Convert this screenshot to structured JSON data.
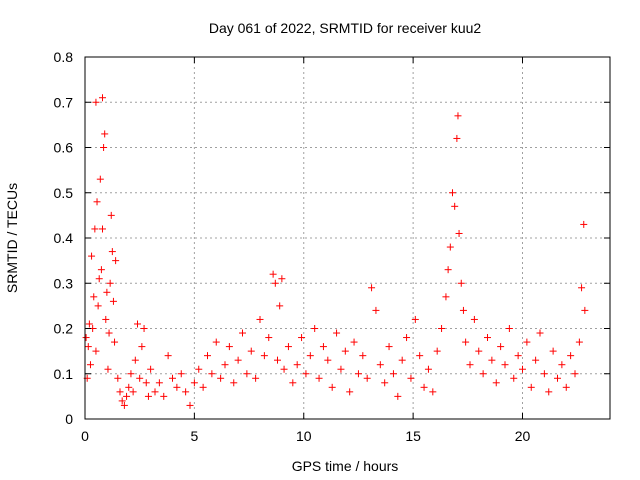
{
  "chart_data": {
    "type": "scatter",
    "title": "Day 061 of 2022, SRMTID for receiver kuu2",
    "xlabel": "GPS time / hours",
    "ylabel": "SRMTID / TECUs",
    "xlim": [
      0,
      24
    ],
    "ylim": [
      0,
      0.8
    ],
    "x_ticks": [
      0,
      5,
      10,
      15,
      20
    ],
    "x_tick_labels": [
      "0",
      "5",
      "10",
      "15",
      "20"
    ],
    "y_ticks": [
      0,
      0.1,
      0.2,
      0.3,
      0.4,
      0.5,
      0.6,
      0.7,
      0.8
    ],
    "y_tick_labels": [
      "0",
      "0.1",
      "0.2",
      "0.3",
      "0.4",
      "0.5",
      "0.6",
      "0.7",
      "0.8"
    ],
    "grid": true,
    "marker": "+",
    "color": "#ff0000",
    "series": [
      {
        "name": "SRMTID",
        "points": [
          [
            0.05,
            0.18
          ],
          [
            0.1,
            0.09
          ],
          [
            0.15,
            0.16
          ],
          [
            0.2,
            0.21
          ],
          [
            0.25,
            0.12
          ],
          [
            0.3,
            0.36
          ],
          [
            0.35,
            0.2
          ],
          [
            0.4,
            0.27
          ],
          [
            0.45,
            0.42
          ],
          [
            0.5,
            0.15
          ],
          [
            0.5,
            0.7
          ],
          [
            0.55,
            0.48
          ],
          [
            0.6,
            0.25
          ],
          [
            0.65,
            0.31
          ],
          [
            0.7,
            0.53
          ],
          [
            0.75,
            0.33
          ],
          [
            0.8,
            0.71
          ],
          [
            0.8,
            0.42
          ],
          [
            0.85,
            0.6
          ],
          [
            0.9,
            0.63
          ],
          [
            0.95,
            0.22
          ],
          [
            1.0,
            0.28
          ],
          [
            1.05,
            0.11
          ],
          [
            1.1,
            0.19
          ],
          [
            1.15,
            0.3
          ],
          [
            1.2,
            0.45
          ],
          [
            1.25,
            0.37
          ],
          [
            1.3,
            0.26
          ],
          [
            1.35,
            0.17
          ],
          [
            1.4,
            0.35
          ],
          [
            1.5,
            0.09
          ],
          [
            1.6,
            0.06
          ],
          [
            1.7,
            0.04
          ],
          [
            1.8,
            0.03
          ],
          [
            1.9,
            0.05
          ],
          [
            2.0,
            0.07
          ],
          [
            2.1,
            0.1
          ],
          [
            2.2,
            0.06
          ],
          [
            2.3,
            0.13
          ],
          [
            2.4,
            0.21
          ],
          [
            2.5,
            0.09
          ],
          [
            2.6,
            0.16
          ],
          [
            2.7,
            0.2
          ],
          [
            2.8,
            0.08
          ],
          [
            2.9,
            0.05
          ],
          [
            3.0,
            0.11
          ],
          [
            3.2,
            0.06
          ],
          [
            3.4,
            0.08
          ],
          [
            3.6,
            0.05
          ],
          [
            3.8,
            0.14
          ],
          [
            4.0,
            0.09
          ],
          [
            4.2,
            0.07
          ],
          [
            4.4,
            0.1
          ],
          [
            4.6,
            0.06
          ],
          [
            4.8,
            0.03
          ],
          [
            5.0,
            0.08
          ],
          [
            5.2,
            0.11
          ],
          [
            5.4,
            0.07
          ],
          [
            5.6,
            0.14
          ],
          [
            5.8,
            0.1
          ],
          [
            6.0,
            0.17
          ],
          [
            6.2,
            0.09
          ],
          [
            6.4,
            0.12
          ],
          [
            6.6,
            0.16
          ],
          [
            6.8,
            0.08
          ],
          [
            7.0,
            0.13
          ],
          [
            7.2,
            0.19
          ],
          [
            7.4,
            0.1
          ],
          [
            7.6,
            0.15
          ],
          [
            7.8,
            0.09
          ],
          [
            8.0,
            0.22
          ],
          [
            8.2,
            0.14
          ],
          [
            8.4,
            0.18
          ],
          [
            8.6,
            0.32
          ],
          [
            8.7,
            0.3
          ],
          [
            8.8,
            0.13
          ],
          [
            8.9,
            0.25
          ],
          [
            9.0,
            0.31
          ],
          [
            9.1,
            0.11
          ],
          [
            9.3,
            0.16
          ],
          [
            9.5,
            0.08
          ],
          [
            9.7,
            0.12
          ],
          [
            9.9,
            0.18
          ],
          [
            10.1,
            0.1
          ],
          [
            10.3,
            0.14
          ],
          [
            10.5,
            0.2
          ],
          [
            10.7,
            0.09
          ],
          [
            10.9,
            0.16
          ],
          [
            11.1,
            0.13
          ],
          [
            11.3,
            0.07
          ],
          [
            11.5,
            0.19
          ],
          [
            11.7,
            0.11
          ],
          [
            11.9,
            0.15
          ],
          [
            12.1,
            0.06
          ],
          [
            12.3,
            0.17
          ],
          [
            12.5,
            0.1
          ],
          [
            12.7,
            0.14
          ],
          [
            12.9,
            0.09
          ],
          [
            13.1,
            0.29
          ],
          [
            13.3,
            0.24
          ],
          [
            13.5,
            0.12
          ],
          [
            13.7,
            0.08
          ],
          [
            13.9,
            0.16
          ],
          [
            14.1,
            0.1
          ],
          [
            14.3,
            0.05
          ],
          [
            14.5,
            0.13
          ],
          [
            14.7,
            0.18
          ],
          [
            14.9,
            0.09
          ],
          [
            15.1,
            0.22
          ],
          [
            15.3,
            0.14
          ],
          [
            15.5,
            0.07
          ],
          [
            15.7,
            0.11
          ],
          [
            15.9,
            0.06
          ],
          [
            16.1,
            0.15
          ],
          [
            16.3,
            0.2
          ],
          [
            16.5,
            0.27
          ],
          [
            16.6,
            0.33
          ],
          [
            16.7,
            0.38
          ],
          [
            16.8,
            0.5
          ],
          [
            16.9,
            0.47
          ],
          [
            17.0,
            0.62
          ],
          [
            17.05,
            0.67
          ],
          [
            17.1,
            0.41
          ],
          [
            17.2,
            0.3
          ],
          [
            17.3,
            0.24
          ],
          [
            17.4,
            0.17
          ],
          [
            17.6,
            0.12
          ],
          [
            17.8,
            0.22
          ],
          [
            18.0,
            0.15
          ],
          [
            18.2,
            0.1
          ],
          [
            18.4,
            0.18
          ],
          [
            18.6,
            0.13
          ],
          [
            18.8,
            0.08
          ],
          [
            19.0,
            0.16
          ],
          [
            19.2,
            0.12
          ],
          [
            19.4,
            0.2
          ],
          [
            19.6,
            0.09
          ],
          [
            19.8,
            0.14
          ],
          [
            20.0,
            0.11
          ],
          [
            20.2,
            0.17
          ],
          [
            20.4,
            0.07
          ],
          [
            20.6,
            0.13
          ],
          [
            20.8,
            0.19
          ],
          [
            21.0,
            0.1
          ],
          [
            21.2,
            0.06
          ],
          [
            21.4,
            0.15
          ],
          [
            21.6,
            0.09
          ],
          [
            21.8,
            0.12
          ],
          [
            22.0,
            0.07
          ],
          [
            22.2,
            0.14
          ],
          [
            22.4,
            0.1
          ],
          [
            22.6,
            0.17
          ],
          [
            22.7,
            0.29
          ],
          [
            22.8,
            0.43
          ],
          [
            22.85,
            0.24
          ]
        ]
      }
    ]
  }
}
